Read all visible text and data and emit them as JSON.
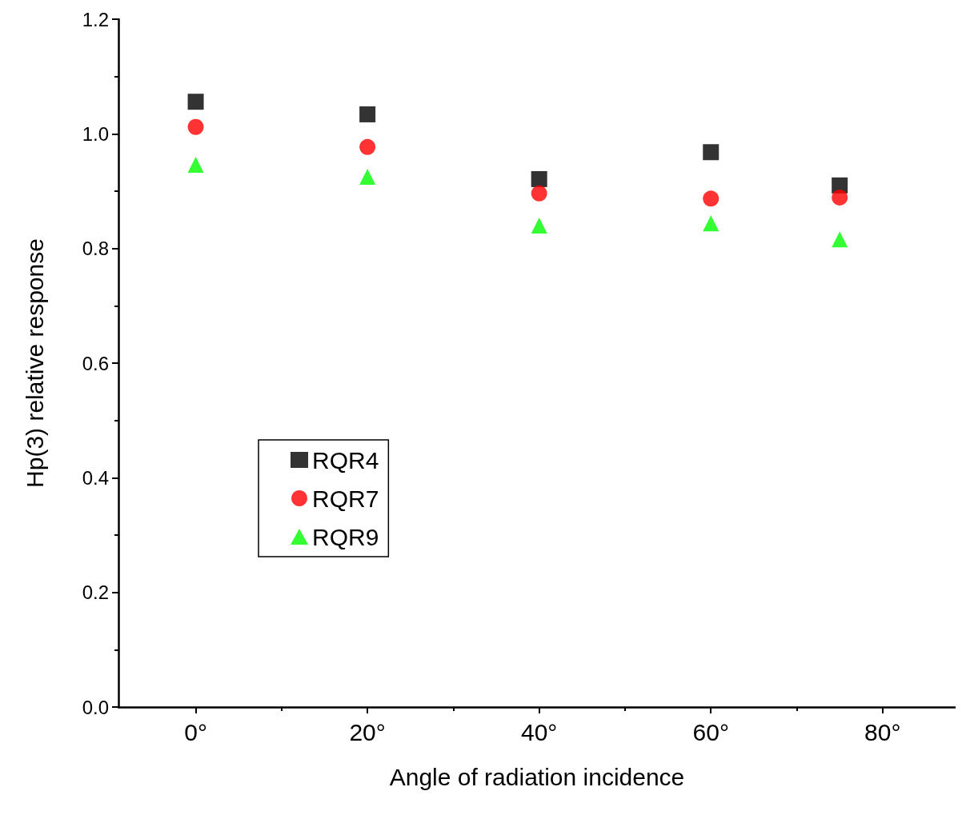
{
  "chart_data": {
    "type": "scatter",
    "xlabel": "Angle of radiation incidence",
    "ylabel": "Hp(3) relative response",
    "xlim": [
      -9,
      88.5
    ],
    "xticks": [
      {
        "value": 0,
        "label": "0°"
      },
      {
        "value": 20,
        "label": "20°"
      },
      {
        "value": 40,
        "label": "40°"
      },
      {
        "value": 60,
        "label": "60°"
      },
      {
        "value": 80,
        "label": "80°"
      }
    ],
    "ylim": [
      0,
      1.2
    ],
    "yticks": [
      {
        "value": 0,
        "label": "0.0"
      },
      {
        "value": 0.2,
        "label": "0.2"
      },
      {
        "value": 0.4,
        "label": "0.4"
      },
      {
        "value": 0.6,
        "label": "0.6"
      },
      {
        "value": 0.8,
        "label": "0.8"
      },
      {
        "value": 1.0,
        "label": "1.0"
      },
      {
        "value": 1.2,
        "label": "1.2"
      }
    ],
    "grid": false,
    "legend": "left",
    "x": [
      0,
      20,
      40,
      60,
      75
    ],
    "series": [
      {
        "name": "RQR4",
        "color": "#000000",
        "marker": "square",
        "values": [
          1.056,
          1.034,
          0.921,
          0.968,
          0.91
        ]
      },
      {
        "name": "RQR7",
        "color": "#ff0000",
        "marker": "circle",
        "values": [
          1.012,
          0.977,
          0.896,
          0.887,
          0.889
        ]
      },
      {
        "name": "RQR9",
        "color": "#00ff00",
        "marker": "triangle",
        "values": [
          0.946,
          0.925,
          0.84,
          0.844,
          0.816
        ]
      }
    ]
  }
}
